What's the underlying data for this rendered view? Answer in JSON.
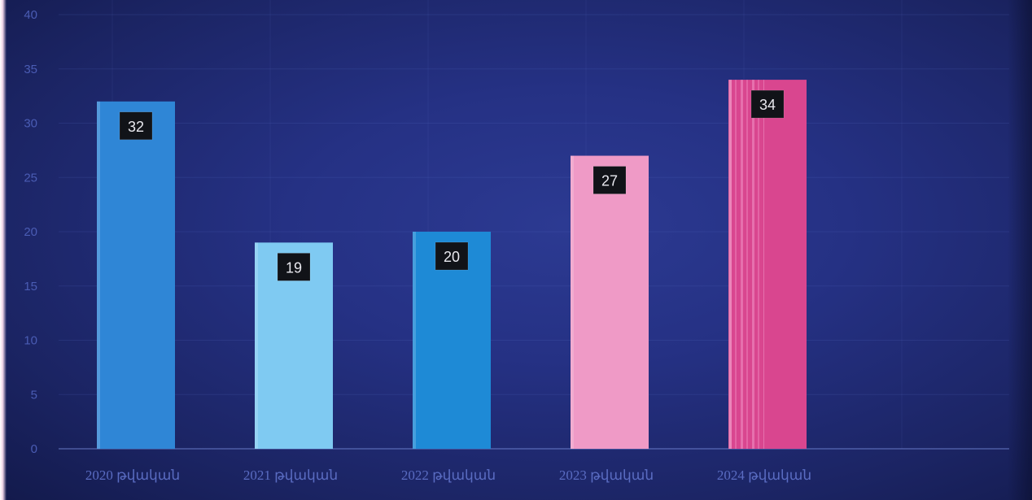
{
  "chart_data": {
    "type": "bar",
    "categories": [
      "2020 թվական",
      "2021 թվական",
      "2022 թվական",
      "2023 թվական",
      "2024 թվական"
    ],
    "values": [
      32,
      19,
      20,
      27,
      34
    ],
    "data_labels": [
      "32",
      "19",
      "20",
      "27",
      "34"
    ],
    "y_ticks": [
      "0",
      "5",
      "10",
      "15",
      "20",
      "25",
      "30",
      "35",
      "40"
    ],
    "ylim": [
      0,
      40
    ],
    "bar_colors": [
      "#2f86d6",
      "#7fcaf2",
      "#1e8ad6",
      "#ef9ac6",
      "#d9468f"
    ],
    "grid": true,
    "legend": "none",
    "title": "",
    "xlabel": "",
    "ylabel": ""
  }
}
